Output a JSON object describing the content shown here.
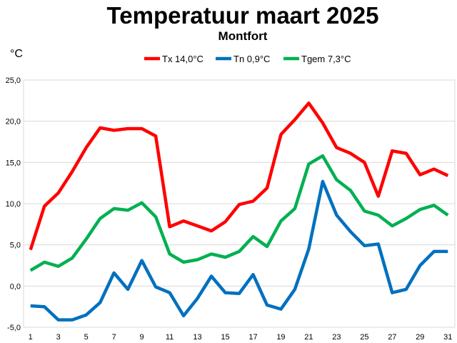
{
  "chart_data": {
    "type": "line",
    "title": "Temperatuur maart 2025",
    "subtitle": "Montfort",
    "ylabel": "°C",
    "xlabel": "",
    "ylim": [
      -5,
      25
    ],
    "y_ticks": [
      "-5,0",
      "0,0",
      "5,0",
      "10,0",
      "15,0",
      "20,0",
      "25,0"
    ],
    "x_ticks": [
      "1",
      "3",
      "5",
      "7",
      "9",
      "11",
      "13",
      "15",
      "17",
      "19",
      "21",
      "23",
      "25",
      "27",
      "29",
      "31"
    ],
    "x": [
      1,
      2,
      3,
      4,
      5,
      6,
      7,
      8,
      9,
      10,
      11,
      12,
      13,
      14,
      15,
      16,
      17,
      18,
      19,
      20,
      21,
      22,
      23,
      24,
      25,
      26,
      27,
      28,
      29,
      30,
      31
    ],
    "grid": "horizontal",
    "legend_position": "top",
    "series": [
      {
        "name": "Tx 14,0°C",
        "color": "#ff0000",
        "values": [
          4.4,
          9.7,
          11.3,
          13.9,
          16.8,
          19.2,
          18.9,
          19.1,
          19.1,
          18.2,
          7.2,
          7.9,
          7.3,
          6.7,
          7.8,
          9.9,
          10.3,
          11.9,
          18.4,
          20.2,
          22.2,
          19.8,
          16.8,
          16.1,
          15.0,
          10.9,
          16.4,
          16.1,
          13.5,
          14.2,
          13.4
        ]
      },
      {
        "name": "Tn 0,9°C",
        "color": "#0070c0",
        "values": [
          -2.4,
          -2.5,
          -4.1,
          -4.1,
          -3.5,
          -2.0,
          1.6,
          -0.4,
          3.1,
          -0.1,
          -0.8,
          -3.6,
          -1.5,
          1.2,
          -0.8,
          -0.9,
          1.4,
          -2.3,
          -2.8,
          -0.4,
          4.5,
          12.7,
          8.6,
          6.6,
          4.9,
          5.1,
          -0.8,
          -0.4,
          2.5,
          4.2,
          4.2
        ]
      },
      {
        "name": "Tgem 7,3°C",
        "color": "#00b050",
        "values": [
          1.9,
          2.9,
          2.4,
          3.4,
          5.7,
          8.2,
          9.4,
          9.2,
          10.1,
          8.4,
          3.9,
          2.9,
          3.2,
          3.9,
          3.5,
          4.2,
          6.0,
          4.8,
          7.9,
          9.4,
          14.8,
          15.8,
          12.9,
          11.6,
          9.1,
          8.6,
          7.3,
          8.2,
          9.3,
          9.8,
          8.6
        ]
      }
    ]
  }
}
